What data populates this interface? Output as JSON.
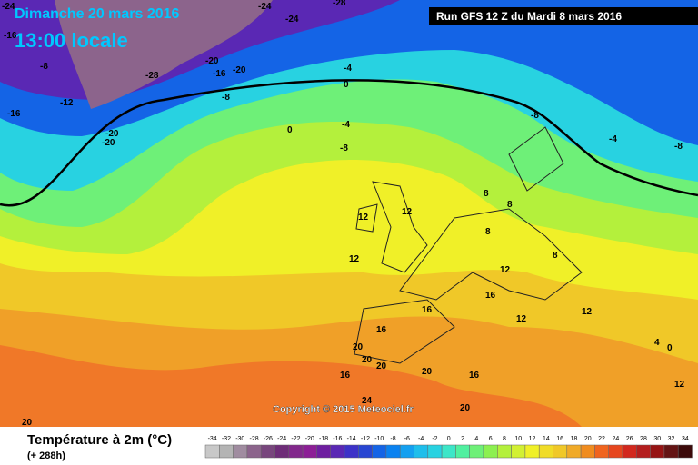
{
  "header": {
    "date": "Dimanche 20 mars 2016",
    "time": "13:00 locale",
    "run": "Run GFS 12 Z du Mardi 8 mars 2016"
  },
  "copyright": "Copyright © 2015 Meteociel.fr",
  "footer": {
    "title": "Température à 2m (°C)",
    "lead": "(+ 288h)"
  },
  "scale": {
    "labels": [
      -34,
      -32,
      -30,
      -28,
      -26,
      -24,
      -22,
      -20,
      -18,
      -16,
      -14,
      -12,
      -10,
      -8,
      -6,
      -4,
      -2,
      0,
      2,
      4,
      6,
      8,
      10,
      12,
      14,
      16,
      18,
      20,
      22,
      24,
      26,
      28,
      30,
      32,
      34
    ],
    "colors": [
      "#c8c8c8",
      "#b4b4b4",
      "#a08ca0",
      "#8c648c",
      "#78467d",
      "#6e2d78",
      "#82288c",
      "#8c1e96",
      "#6e1ea0",
      "#5a28b4",
      "#3c32c8",
      "#2846d2",
      "#1464e6",
      "#0a82f0",
      "#14a0f0",
      "#1ebeeb",
      "#28d2e1",
      "#3ce6c8",
      "#50f0a0",
      "#6ef078",
      "#8cf050",
      "#b4f03c",
      "#d2f032",
      "#f0f028",
      "#f0dc28",
      "#f0c828",
      "#f0aa28",
      "#f08c1e",
      "#f0641e",
      "#e6461e",
      "#d2281e",
      "#b41e1e",
      "#961414",
      "#641414",
      "#3c0a0a"
    ]
  },
  "map_labels": [
    "-24",
    "-24",
    "-24",
    "-28",
    "-16",
    "-8",
    "-28",
    "-20",
    "-16",
    "-20",
    "-8",
    "-12",
    "-16",
    "-20",
    "-20",
    "-4",
    "0",
    "-4",
    "0",
    "-8",
    "-8",
    "-4",
    "-8",
    "12",
    "12",
    "12",
    "8",
    "8",
    "8",
    "8",
    "12",
    "16",
    "16",
    "16",
    "20",
    "20",
    "20",
    "16",
    "20",
    "16",
    "12",
    "12",
    "4",
    "0",
    "20",
    "20",
    "12",
    "24"
  ]
}
